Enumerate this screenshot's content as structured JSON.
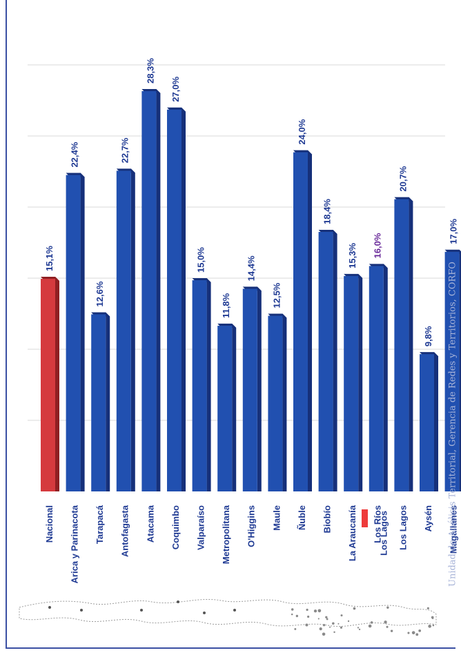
{
  "chart_data": {
    "type": "bar",
    "orientation": "vertical-rotated",
    "categories": [
      "Nacional",
      "Arica y Parinacota",
      "Tarapacá",
      "Antofagasta",
      "Atacama",
      "Coquimbo",
      "Valparaíso",
      "Metropolitana",
      "O'Higgins",
      "Maule",
      "Ñuble",
      "Biobío",
      "La Araucanía",
      "Los Ríos",
      "Los Lagos",
      "Aysén",
      "Magallanes"
    ],
    "values": [
      15.1,
      22.4,
      12.6,
      22.7,
      28.3,
      27.0,
      15.0,
      11.8,
      14.4,
      12.5,
      24.0,
      18.4,
      15.3,
      16.0,
      20.7,
      9.8,
      17.0
    ],
    "data_labels": [
      "15,1%",
      "22,4%",
      "12,6%",
      "22,7%",
      "28,3%",
      "27,0%",
      "15,0%",
      "11,8%",
      "14,4%",
      "12,5%",
      "24,0%",
      "18,4%",
      "15,3%",
      "16,0%",
      "20,7%",
      "9,8%",
      "17,0%"
    ],
    "highlight_index": 0,
    "ylim": [
      0,
      30
    ],
    "grid": true,
    "legend": [
      {
        "name": "Los Lagos",
        "color": "#ee3b3b"
      }
    ],
    "legend_placement": "bottom-center",
    "colors": {
      "bar": "#2150b0",
      "bar_top": "#16307a",
      "highlight": "#d53a3e",
      "highlight_top": "#8f1f22",
      "label": "#1f3a93",
      "label_accent": "#6a2b9a",
      "grid": "#d8d8d8"
    },
    "label_accent_index": 13,
    "source_note": "Unidad de Análisis Territorial, Gerencia de Redes y Territorios, CORFO"
  }
}
